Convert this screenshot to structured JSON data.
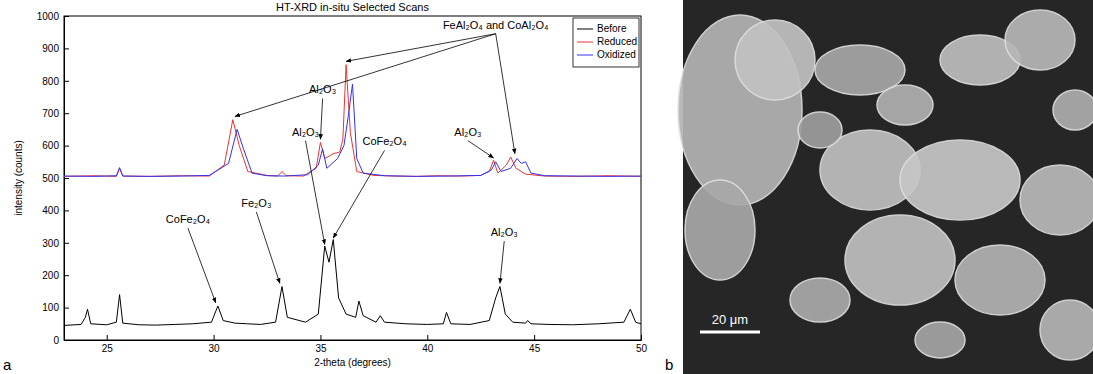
{
  "chart_data": {
    "type": "line",
    "title": "HT-XRD in-situ Selected Scans",
    "x_label": "2-theta (degrees)",
    "y_label": "intensity (counts)",
    "xlim": [
      23,
      50
    ],
    "ylim": [
      0,
      1000
    ],
    "xticks": [
      25,
      30,
      35,
      40,
      45,
      50
    ],
    "yticks": [
      0,
      100,
      200,
      300,
      400,
      500,
      600,
      700,
      800,
      900,
      1000
    ],
    "grid": false,
    "legend": "upper right",
    "series": [
      {
        "name": "Before",
        "color": "#000000",
        "x": [
          23,
          23.8,
          24.0,
          24.1,
          24.25,
          25.0,
          25.45,
          25.6,
          25.75,
          26.5,
          27.3,
          28.2,
          29.0,
          29.9,
          30.2,
          30.45,
          31.0,
          31.6,
          32.2,
          32.9,
          33.2,
          33.45,
          34.3,
          34.9,
          35.2,
          35.4,
          35.6,
          35.85,
          36.2,
          36.65,
          36.8,
          37.0,
          37.6,
          37.8,
          38.0,
          39.0,
          40.0,
          40.75,
          40.9,
          41.1,
          42.0,
          42.9,
          43.2,
          43.4,
          43.65,
          44.0,
          44.6,
          44.7,
          44.85,
          45.7,
          46.8,
          48.0,
          49.2,
          49.5,
          49.75,
          50
        ],
        "values": [
          45,
          48,
          70,
          95,
          50,
          47,
          55,
          140,
          52,
          47,
          46,
          48,
          50,
          55,
          105,
          60,
          52,
          50,
          48,
          55,
          165,
          70,
          55,
          80,
          290,
          240,
          310,
          130,
          80,
          70,
          120,
          75,
          55,
          75,
          55,
          50,
          48,
          50,
          85,
          50,
          48,
          60,
          130,
          165,
          80,
          55,
          52,
          60,
          50,
          48,
          47,
          50,
          55,
          95,
          55,
          50
        ]
      },
      {
        "name": "Reduced",
        "color": "#ee3333",
        "x": [
          23,
          24.5,
          25.45,
          25.6,
          25.75,
          27,
          28.5,
          29.8,
          30.5,
          30.9,
          31.2,
          31.6,
          32.5,
          33.0,
          33.2,
          33.4,
          34.2,
          34.8,
          35.0,
          35.2,
          35.6,
          35.9,
          36.05,
          36.2,
          36.4,
          36.7,
          37.5,
          38.5,
          39.5,
          40.5,
          41.5,
          42.5,
          42.9,
          43.1,
          43.3,
          43.7,
          43.9,
          44.15,
          44.6,
          45.5,
          47,
          48.5,
          50
        ],
        "values": [
          505,
          507,
          505,
          530,
          506,
          505,
          507,
          506,
          540,
          680,
          600,
          520,
          508,
          506,
          520,
          507,
          506,
          530,
          610,
          560,
          575,
          580,
          620,
          850,
          640,
          520,
          508,
          506,
          505,
          507,
          506,
          508,
          520,
          555,
          515,
          540,
          565,
          530,
          512,
          506,
          505,
          507,
          505
        ]
      },
      {
        "name": "Oxidized",
        "color": "#3333ee",
        "x": [
          23,
          24.5,
          25.45,
          25.6,
          25.75,
          27,
          28.5,
          29.8,
          30.7,
          31.1,
          31.4,
          31.8,
          32.5,
          33.3,
          34.4,
          34.9,
          35.1,
          35.3,
          35.8,
          36.1,
          36.3,
          36.5,
          36.7,
          37.0,
          38,
          39.5,
          41,
          42.5,
          43.0,
          43.2,
          43.45,
          43.9,
          44.2,
          44.4,
          44.6,
          44.85,
          45.5,
          47,
          48.5,
          50
        ],
        "values": [
          506,
          505,
          507,
          532,
          506,
          505,
          506,
          508,
          545,
          650,
          590,
          515,
          507,
          506,
          510,
          540,
          590,
          530,
          560,
          600,
          690,
          790,
          560,
          515,
          507,
          505,
          506,
          508,
          525,
          550,
          520,
          530,
          560,
          545,
          550,
          515,
          507,
          506,
          505,
          506
        ]
      }
    ],
    "annotations": [
      {
        "text": "FeAl₂O₄ and CoAl₂O₄",
        "x": 43.2,
        "y": 970,
        "arrows": [
          {
            "x": 31.0,
            "y": 690
          },
          {
            "x": 36.2,
            "y": 860
          },
          {
            "x": 44.1,
            "y": 575
          }
        ]
      },
      {
        "text": "Al₂O₃",
        "x": 35.1,
        "y": 770,
        "arrows": [
          {
            "x": 35.0,
            "y": 620
          }
        ]
      },
      {
        "text": "Al₂O₃",
        "x": 41.9,
        "y": 640,
        "arrows": [
          {
            "x": 43.1,
            "y": 562
          }
        ]
      },
      {
        "text": "CoFe₂O₄",
        "x": 28.8,
        "y": 370,
        "arrows": [
          {
            "x": 30.1,
            "y": 115
          }
        ]
      },
      {
        "text": "Fe₂O₃",
        "x": 32.0,
        "y": 420,
        "arrows": [
          {
            "x": 33.1,
            "y": 175
          }
        ]
      },
      {
        "text": "Al₂O₃",
        "x": 34.3,
        "y": 640,
        "arrows": [
          {
            "x": 35.2,
            "y": 295
          }
        ]
      },
      {
        "text": "CoFe₂O₄",
        "x": 38.0,
        "y": 610,
        "arrows": [
          {
            "x": 35.6,
            "y": 315
          }
        ]
      },
      {
        "text": "Al₂O₃",
        "x": 43.6,
        "y": 330,
        "arrows": [
          {
            "x": 43.4,
            "y": 175
          }
        ]
      }
    ]
  },
  "panels": [
    {
      "label": "a"
    },
    {
      "label": "b",
      "scale_bar": "20 μm"
    }
  ]
}
